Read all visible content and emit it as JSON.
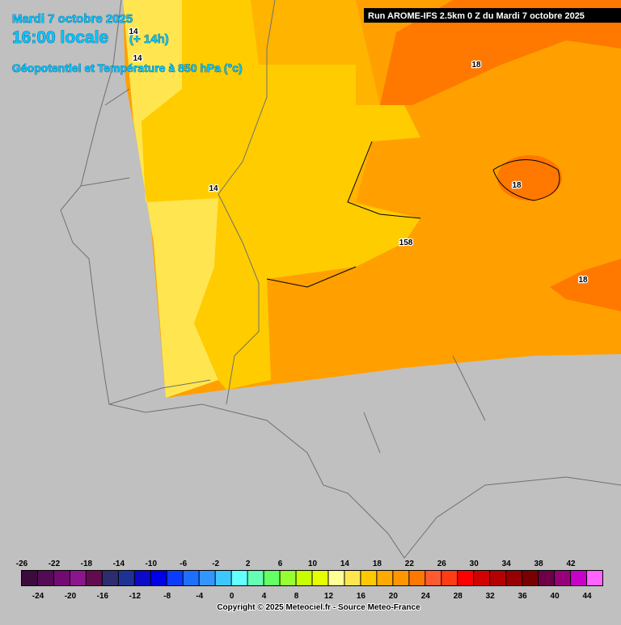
{
  "header": {
    "date": "Mardi 7 octobre 2025",
    "time": "16:00 locale",
    "lead": "(+ 14h)",
    "product": "Géopotentiel et Température à 850 hPa (°c)"
  },
  "run": "Run AROME-IFS 2.5km 0 Z du Mardi 7 octobre 2025",
  "contour_labels": [
    "14",
    "14",
    "14",
    "18",
    "18",
    "158",
    "18"
  ],
  "colorbar": {
    "values": [
      -26,
      -24,
      -22,
      -20,
      -18,
      -16,
      -14,
      -12,
      -10,
      -8,
      -6,
      -4,
      -2,
      0,
      2,
      4,
      6,
      8,
      10,
      12,
      14,
      16,
      18,
      20,
      22,
      24,
      26,
      28,
      30,
      32,
      34,
      36,
      38,
      40,
      42,
      44
    ],
    "colors": [
      "#3c0a3c",
      "#550a55",
      "#730a73",
      "#8c148c",
      "#640a50",
      "#2d2d6e",
      "#1e3296",
      "#0a0ac8",
      "#0000e6",
      "#0a3cff",
      "#1e6eff",
      "#3296ff",
      "#3cc8ff",
      "#64ffff",
      "#64ffb4",
      "#64ff64",
      "#96ff32",
      "#c8ff00",
      "#e6ff00",
      "#ffff96",
      "#ffe650",
      "#ffc800",
      "#ffaa00",
      "#ff9600",
      "#ff7800",
      "#ff5a32",
      "#ff3c14",
      "#ff0000",
      "#d20000",
      "#b40000",
      "#960000",
      "#780000",
      "#6e0046",
      "#960078",
      "#c800c8",
      "#ff64ff"
    ]
  },
  "copyright": "Copyright © 2025 Meteociel.fr - Source Meteo-France"
}
